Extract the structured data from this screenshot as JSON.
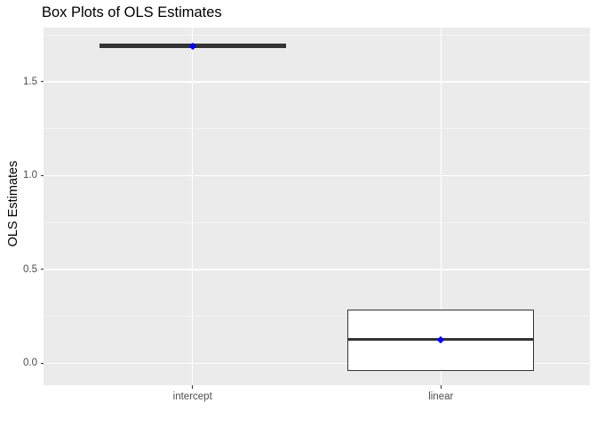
{
  "chart_data": {
    "type": "boxplot",
    "title": "Box Plots of OLS Estimates",
    "ylabel": "OLS Estimates",
    "xlabel": "",
    "categories": [
      "intercept",
      "linear"
    ],
    "y_ticks": [
      0.0,
      0.5,
      1.0,
      1.5
    ],
    "y_tick_labels": [
      "0.0",
      "0.5",
      "1.0",
      "1.5"
    ],
    "y_minor_ticks": [
      0.25,
      0.75,
      1.25,
      1.75
    ],
    "ylim": [
      -0.117,
      1.788
    ],
    "grid": true,
    "legend": false,
    "series": [
      {
        "name": "intercept",
        "whisker_low": 1.677,
        "q1": 1.677,
        "median": 1.69,
        "q3": 1.703,
        "whisker_high": 1.703,
        "mean": 1.69
      },
      {
        "name": "linear",
        "whisker_low": -0.04,
        "q1": -0.04,
        "median": 0.126,
        "q3": 0.284,
        "whisker_high": 0.284,
        "mean": 0.127
      }
    ],
    "colors": {
      "background": "#FFFFFF",
      "panel_bg": "#EBEBEB",
      "grid_major": "#FFFFFF",
      "grid_minor": "#F5F5F5",
      "box_border": "#333333",
      "box_fill": "#FFFFFF",
      "median": "#333333",
      "mean_point": "#0000FF",
      "tick_mark": "#333333",
      "tick_label": "#4D4D4D",
      "axis_title": "#000000",
      "title": "#000000"
    }
  }
}
